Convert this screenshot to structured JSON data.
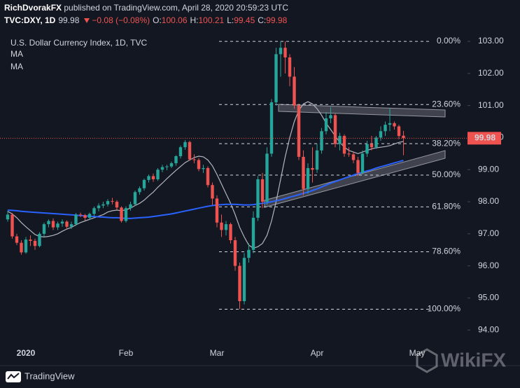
{
  "header": {
    "author": "RichDvorakFX",
    "published": " published on TradingView.com, April 28, 2020 20:59:23 UTC",
    "symbol": "TVC:DXY, 1D",
    "last": 99.98,
    "change": "−0.08 (−0.08%)",
    "open_label": "O:",
    "open": 100.06,
    "high_label": "H:",
    "high": 100.21,
    "low_label": "L:",
    "low": 99.45,
    "close_label": "C:",
    "close": 99.98
  },
  "chart_data": {
    "type": "candlestick",
    "title": "U.S. Dollar Currency Index, 1D, TVC",
    "categories": [
      null,
      null,
      null,
      null,
      "2020",
      null,
      null,
      null,
      null,
      null,
      null,
      null,
      null,
      null,
      null,
      null,
      null,
      null,
      null,
      null,
      null,
      null,
      null,
      null,
      null,
      null,
      "Feb",
      null,
      null,
      null,
      null,
      null,
      null,
      null,
      null,
      null,
      null,
      null,
      null,
      null,
      null,
      null,
      null,
      null,
      null,
      null,
      "Mar",
      null,
      null,
      null,
      null,
      null,
      null,
      null,
      null,
      null,
      null,
      null,
      null,
      null,
      null,
      null,
      null,
      null,
      null,
      null,
      null,
      null,
      "Apr",
      null,
      null,
      null,
      null,
      null,
      null,
      null,
      null,
      null,
      null,
      null,
      null,
      null,
      null,
      null,
      null,
      null,
      null,
      null,
      null,
      null,
      "May",
      null,
      null,
      null,
      null,
      null,
      null,
      null,
      null,
      null,
      null,
      null
    ],
    "ohlc": [
      [
        97.45,
        97.72,
        97.38,
        97.6
      ],
      [
        97.6,
        97.65,
        96.85,
        96.92
      ],
      [
        96.92,
        97.0,
        96.65,
        96.72
      ],
      [
        96.72,
        96.8,
        96.35,
        96.42
      ],
      [
        96.42,
        96.9,
        96.38,
        96.82
      ],
      [
        96.82,
        96.95,
        96.62,
        96.78
      ],
      [
        96.78,
        96.85,
        96.5,
        96.62
      ],
      [
        96.62,
        97.05,
        96.58,
        97.0
      ],
      [
        97.0,
        97.35,
        96.92,
        97.3
      ],
      [
        97.3,
        97.45,
        97.2,
        97.4
      ],
      [
        97.4,
        97.48,
        97.12,
        97.2
      ],
      [
        97.2,
        97.38,
        97.12,
        97.32
      ],
      [
        97.32,
        97.45,
        97.22,
        97.38
      ],
      [
        97.38,
        97.42,
        97.15,
        97.22
      ],
      [
        97.22,
        97.38,
        97.15,
        97.3
      ],
      [
        97.3,
        97.65,
        97.25,
        97.6
      ],
      [
        97.6,
        97.66,
        97.52,
        97.58
      ],
      [
        97.58,
        97.62,
        97.42,
        97.5
      ],
      [
        97.5,
        97.66,
        97.45,
        97.62
      ],
      [
        97.62,
        97.85,
        97.55,
        97.8
      ],
      [
        97.8,
        97.95,
        97.7,
        97.88
      ],
      [
        97.88,
        98.0,
        97.8,
        97.92
      ],
      [
        97.92,
        98.08,
        97.85,
        98.02
      ],
      [
        98.02,
        98.12,
        97.92,
        98.0
      ],
      [
        98.0,
        98.05,
        97.75,
        97.82
      ],
      [
        97.82,
        97.86,
        97.35,
        97.4
      ],
      [
        97.4,
        97.86,
        97.35,
        97.8
      ],
      [
        97.8,
        98.0,
        97.72,
        97.92
      ],
      [
        97.92,
        98.35,
        97.88,
        98.3
      ],
      [
        98.3,
        98.48,
        98.22,
        98.42
      ],
      [
        98.42,
        98.72,
        98.35,
        98.68
      ],
      [
        98.68,
        98.85,
        98.6,
        98.8
      ],
      [
        98.8,
        98.88,
        98.62,
        98.7
      ],
      [
        98.7,
        99.05,
        98.65,
        99.0
      ],
      [
        99.0,
        99.15,
        98.92,
        99.08
      ],
      [
        99.08,
        99.15,
        98.98,
        99.1
      ],
      [
        99.1,
        99.25,
        99.05,
        99.2
      ],
      [
        99.2,
        99.45,
        99.12,
        99.42
      ],
      [
        99.42,
        99.75,
        99.35,
        99.7
      ],
      [
        99.7,
        99.92,
        99.62,
        99.86
      ],
      [
        99.86,
        99.9,
        99.28,
        99.32
      ],
      [
        99.32,
        99.48,
        99.2,
        99.3
      ],
      [
        99.3,
        99.36,
        98.95,
        99.02
      ],
      [
        99.02,
        99.15,
        98.9,
        99.05
      ],
      [
        99.05,
        99.1,
        98.45,
        98.52
      ],
      [
        98.52,
        98.6,
        97.9,
        98.1
      ],
      [
        98.1,
        98.2,
        97.2,
        97.35
      ],
      [
        97.35,
        97.6,
        96.9,
        97.12
      ],
      [
        97.12,
        97.4,
        96.95,
        97.3
      ],
      [
        97.3,
        97.35,
        96.7,
        96.8
      ],
      [
        96.8,
        96.9,
        95.85,
        96.0
      ],
      [
        96.0,
        96.1,
        94.65,
        94.9
      ],
      [
        94.9,
        96.4,
        94.8,
        96.25
      ],
      [
        96.25,
        96.7,
        96.1,
        96.5
      ],
      [
        96.5,
        97.7,
        96.4,
        97.5
      ],
      [
        97.5,
        98.8,
        97.4,
        98.7
      ],
      [
        98.7,
        98.9,
        97.8,
        98.0
      ],
      [
        98.0,
        99.7,
        97.9,
        99.5
      ],
      [
        99.5,
        101.2,
        99.4,
        101.1
      ],
      [
        101.1,
        102.8,
        101.0,
        102.6
      ],
      [
        102.6,
        103.0,
        101.9,
        102.8
      ],
      [
        102.8,
        103.0,
        102.0,
        102.5
      ],
      [
        102.5,
        102.6,
        101.6,
        101.9
      ],
      [
        101.9,
        102.2,
        100.9,
        101.0
      ],
      [
        101.0,
        101.05,
        99.3,
        99.4
      ],
      [
        99.4,
        99.6,
        98.2,
        98.4
      ],
      [
        98.4,
        99.2,
        98.25,
        99.05
      ],
      [
        99.05,
        99.7,
        98.6,
        99.0
      ],
      [
        99.0,
        99.8,
        98.9,
        99.6
      ],
      [
        99.6,
        100.3,
        99.5,
        100.2
      ],
      [
        100.2,
        100.8,
        100.1,
        100.6
      ],
      [
        100.6,
        100.95,
        100.45,
        100.7
      ],
      [
        100.7,
        100.75,
        99.7,
        99.8
      ],
      [
        99.8,
        100.15,
        99.6,
        100.05
      ],
      [
        100.05,
        100.1,
        99.4,
        99.5
      ],
      [
        99.5,
        99.7,
        99.4,
        99.48
      ],
      [
        99.48,
        99.55,
        99.2,
        99.3
      ],
      [
        99.3,
        99.4,
        98.8,
        98.9
      ],
      [
        98.9,
        99.6,
        98.85,
        99.5
      ],
      [
        99.5,
        99.9,
        99.4,
        99.8
      ],
      [
        99.8,
        100.05,
        99.6,
        99.7
      ],
      [
        99.7,
        100.05,
        99.65,
        100.0
      ],
      [
        100.0,
        100.35,
        99.9,
        100.2
      ],
      [
        100.2,
        100.5,
        100.05,
        100.4
      ],
      [
        100.4,
        100.9,
        100.2,
        100.45
      ],
      [
        100.45,
        100.5,
        100.25,
        100.35
      ],
      [
        100.35,
        100.4,
        99.95,
        100.05
      ],
      [
        100.06,
        100.21,
        99.45,
        99.98
      ],
      null,
      null,
      null,
      null,
      null,
      null,
      null,
      null,
      null,
      null,
      null,
      null,
      null,
      null
    ],
    "series": [
      {
        "name": "MA",
        "color": "#b2b5be",
        "values": [
          97.7,
          97.62,
          97.5,
          97.35,
          97.22,
          97.1,
          96.98,
          96.92,
          96.9,
          96.92,
          96.95,
          97.0,
          97.08,
          97.15,
          97.2,
          97.28,
          97.35,
          97.4,
          97.45,
          97.5,
          97.55,
          97.6,
          97.68,
          97.72,
          97.74,
          97.72,
          97.75,
          97.8,
          97.88,
          97.95,
          98.05,
          98.18,
          98.3,
          98.45,
          98.58,
          98.72,
          98.85,
          98.98,
          99.1,
          99.22,
          99.3,
          99.38,
          99.42,
          99.4,
          99.3,
          99.12,
          98.85,
          98.55,
          98.25,
          97.95,
          97.6,
          97.2,
          96.9,
          96.65,
          96.55,
          96.6,
          96.7,
          96.95,
          97.4,
          98.0,
          98.7,
          99.4,
          100.0,
          100.5,
          100.85,
          101.05,
          101.12,
          101.05,
          100.9,
          100.7,
          100.45,
          100.25,
          100.05,
          99.85,
          99.7,
          99.6,
          99.55,
          99.5,
          99.55,
          99.6,
          99.65,
          99.68,
          99.7,
          99.72,
          99.75,
          99.8,
          99.85,
          99.88,
          null,
          null,
          null,
          null,
          null,
          null,
          null,
          null,
          null,
          null,
          null,
          null,
          null,
          null
        ]
      },
      {
        "name": "MA",
        "color": "#2962ff",
        "values": [
          97.74,
          97.73,
          97.72,
          97.7,
          97.69,
          97.68,
          97.67,
          97.66,
          97.65,
          97.64,
          97.63,
          97.62,
          97.61,
          97.6,
          97.59,
          97.58,
          97.57,
          97.56,
          97.55,
          97.54,
          97.53,
          97.52,
          97.51,
          97.5,
          97.5,
          97.49,
          97.48,
          97.48,
          97.49,
          97.5,
          97.51,
          97.52,
          97.54,
          97.56,
          97.58,
          97.6,
          97.62,
          97.65,
          97.68,
          97.71,
          97.74,
          97.77,
          97.8,
          97.83,
          97.86,
          97.88,
          97.9,
          97.91,
          97.92,
          97.92,
          97.92,
          97.91,
          97.9,
          97.9,
          97.91,
          97.93,
          97.95,
          97.97,
          98.0,
          98.03,
          98.06,
          98.1,
          98.14,
          98.18,
          98.22,
          98.26,
          98.3,
          98.35,
          98.4,
          98.46,
          98.52,
          98.58,
          98.63,
          98.68,
          98.73,
          98.78,
          98.83,
          98.88,
          98.92,
          98.96,
          99.0,
          99.05,
          99.09,
          99.13,
          99.17,
          99.21,
          99.25,
          99.29,
          null,
          null,
          null,
          null,
          null,
          null,
          null,
          null,
          null,
          null,
          null,
          null,
          null,
          null
        ]
      }
    ],
    "up_color": "#26a69a",
    "down_color": "#ef5350",
    "ylim": [
      93.59,
      104.29
    ],
    "yticks": [
      {
        "value": 94,
        "label": "94.00"
      },
      {
        "value": 95,
        "label": "95.00"
      },
      {
        "value": 96,
        "label": "96.00"
      },
      {
        "value": 97,
        "label": "97.00"
      },
      {
        "value": 98,
        "label": "98.00"
      },
      {
        "value": 99,
        "label": "99.00"
      },
      {
        "value": 100,
        "label": "100.00"
      },
      {
        "value": 101,
        "label": "101.00"
      },
      {
        "value": 102,
        "label": "102.00"
      },
      {
        "value": 103,
        "label": "103.00"
      }
    ],
    "grid": false,
    "last_price": 99.98,
    "fib_levels": [
      {
        "label": "0.00%",
        "value": 103.0
      },
      {
        "label": "23.60%",
        "value": 101.03
      },
      {
        "label": "38.20%",
        "value": 99.81
      },
      {
        "label": "50.00%",
        "value": 98.83
      },
      {
        "label": "61.80%",
        "value": 97.84
      },
      {
        "label": "78.60%",
        "value": 96.44
      },
      {
        "label": "100.00%",
        "value": 94.65
      }
    ]
  },
  "footer": {
    "brand": "TradingView",
    "watermark": "WikiFX"
  }
}
